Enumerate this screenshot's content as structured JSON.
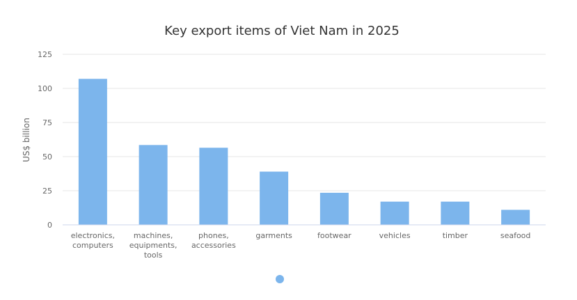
{
  "chart_data": {
    "type": "bar",
    "title": "Key export items of Viet Nam in 2025",
    "ylabel": "US$ billion",
    "xlabel": "",
    "ylim": [
      0,
      125
    ],
    "yticks": [
      0,
      25,
      50,
      75,
      100,
      125
    ],
    "grid": true,
    "categories": [
      [
        "electronics,",
        "computers"
      ],
      [
        "machines,",
        "equipments,",
        "tools"
      ],
      [
        "phones,",
        "accessories"
      ],
      [
        "garments"
      ],
      [
        "footwear"
      ],
      [
        "vehicles"
      ],
      [
        "timber"
      ],
      [
        "seafood"
      ]
    ],
    "values": [
      107,
      58.5,
      56.5,
      39,
      23.5,
      17,
      17,
      11
    ],
    "colors": {
      "bar": "#7cb5ec",
      "indicator": "#7cb5ec"
    }
  }
}
